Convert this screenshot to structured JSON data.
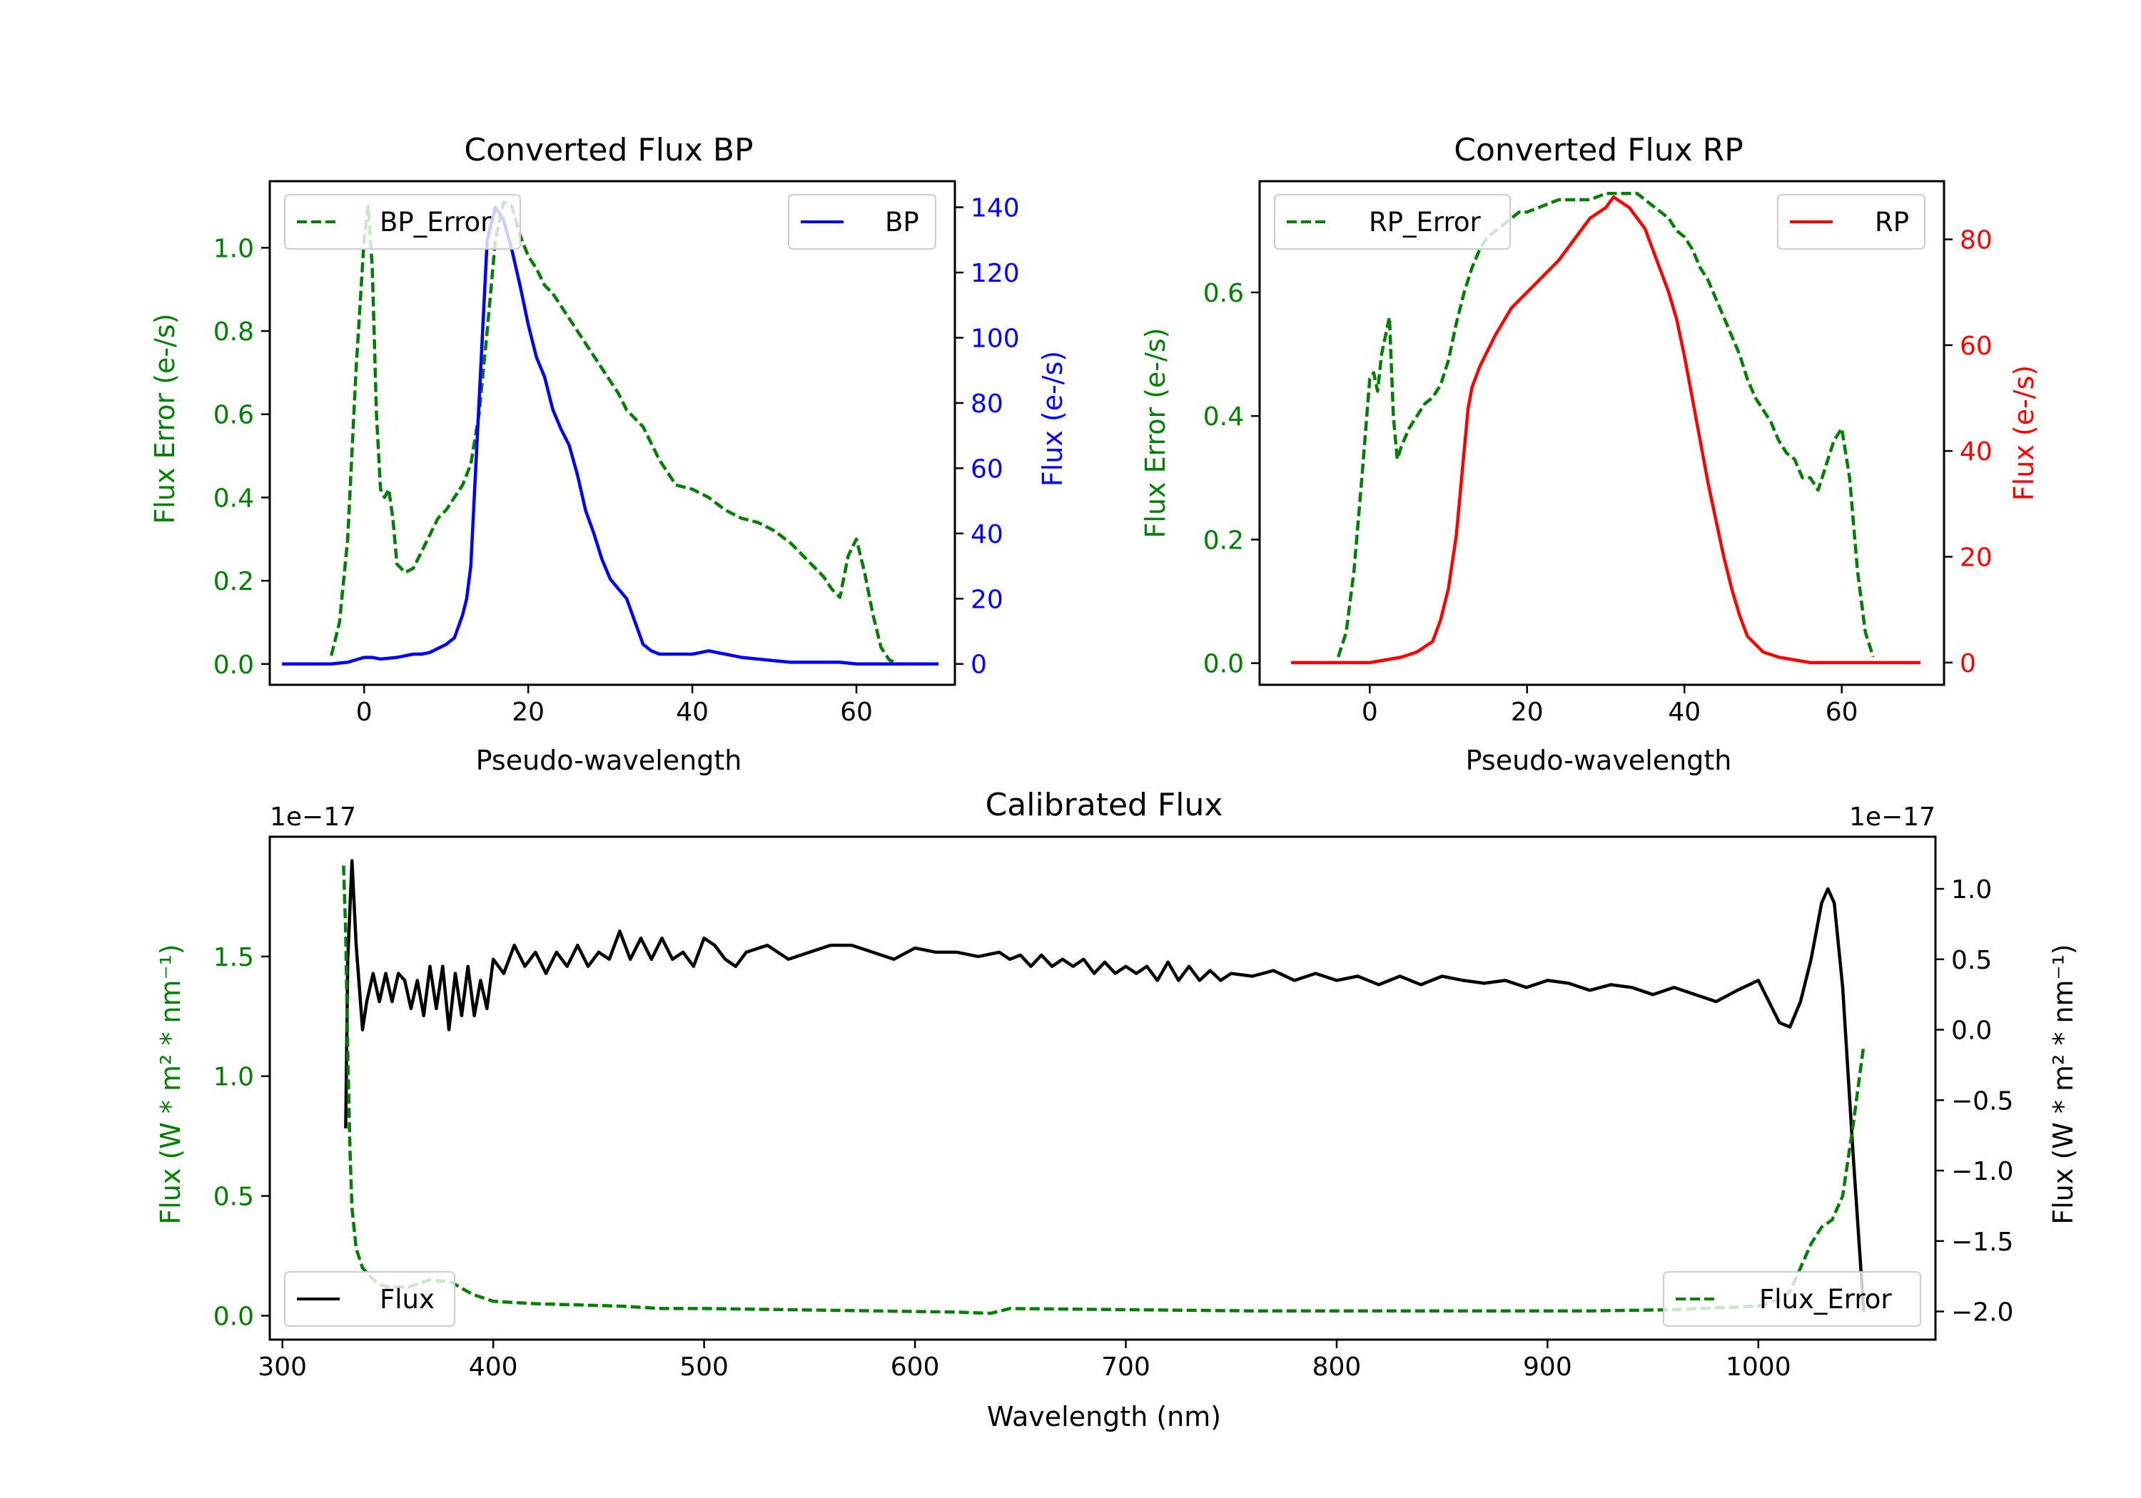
{
  "chart_data": [
    {
      "type": "line",
      "title": "Converted Flux BP",
      "xlabel": "Pseudo-wavelength",
      "ylabel_left": "Flux Error (e-/s)",
      "ylabel_right": "Flux (e-/s)",
      "xlim": [
        -11.5,
        72
      ],
      "ylim_left": [
        -0.05,
        1.16
      ],
      "ylim_right": [
        -6.4,
        148
      ],
      "x_ticks": [
        0,
        20,
        40,
        60
      ],
      "y_left_ticks": [
        "0.0",
        "0.2",
        "0.4",
        "0.6",
        "0.8",
        "1.0"
      ],
      "y_left_tick_values": [
        0,
        0.2,
        0.4,
        0.6,
        0.8,
        1.0
      ],
      "y_right_ticks": [
        "0",
        "20",
        "40",
        "60",
        "80",
        "100",
        "120",
        "140"
      ],
      "y_right_tick_values": [
        0,
        20,
        40,
        60,
        80,
        100,
        120,
        140
      ],
      "colors": {
        "left_axis": "#008000",
        "right_axis": "#0000ff",
        "error": "#008000",
        "flux": "#0000ff"
      },
      "legend": {
        "left": "BP_Error",
        "right": "BP"
      },
      "series": [
        {
          "name": "BP_Error",
          "axis": "left",
          "style": "dashed",
          "x": [
            -4,
            -3,
            -2,
            -1,
            0,
            0.5,
            1,
            1.5,
            2,
            2.5,
            3,
            3.5,
            4,
            5,
            6,
            7,
            8,
            9,
            10,
            11,
            12,
            13,
            14,
            15,
            16,
            17,
            18,
            19,
            20,
            21,
            22,
            23,
            24,
            25,
            26,
            27,
            28,
            29,
            30,
            31,
            32,
            33,
            34,
            35,
            36,
            37,
            38,
            40,
            42,
            44,
            46,
            48,
            50,
            52,
            54,
            56,
            57,
            58,
            59,
            60,
            61,
            62,
            63,
            64,
            65,
            66
          ],
          "y": [
            0.02,
            0.1,
            0.3,
            0.7,
            1.02,
            1.1,
            0.95,
            0.6,
            0.42,
            0.4,
            0.42,
            0.35,
            0.24,
            0.22,
            0.23,
            0.27,
            0.31,
            0.35,
            0.37,
            0.4,
            0.43,
            0.48,
            0.6,
            0.8,
            1.02,
            1.11,
            1.1,
            1.03,
            0.98,
            0.95,
            0.91,
            0.89,
            0.86,
            0.83,
            0.8,
            0.77,
            0.74,
            0.71,
            0.68,
            0.65,
            0.61,
            0.59,
            0.57,
            0.53,
            0.49,
            0.46,
            0.43,
            0.42,
            0.4,
            0.37,
            0.35,
            0.34,
            0.32,
            0.29,
            0.25,
            0.21,
            0.18,
            0.16,
            0.26,
            0.3,
            0.22,
            0.12,
            0.04,
            0.01,
            0.0,
            0.0
          ]
        },
        {
          "name": "BP",
          "axis": "right",
          "style": "solid",
          "x": [
            -10,
            -8,
            -6,
            -4,
            -2,
            0,
            1,
            2,
            4,
            6,
            7,
            8,
            10,
            11,
            12,
            12.5,
            13,
            14,
            15,
            16,
            17,
            18,
            19,
            20,
            21,
            22,
            23,
            24,
            25,
            26,
            27,
            28,
            29,
            30,
            31,
            32,
            33,
            34,
            35,
            36,
            38,
            40,
            42,
            44,
            46,
            48,
            50,
            52,
            54,
            56,
            58,
            60,
            62,
            64,
            66,
            68,
            70
          ],
          "y": [
            0,
            0,
            0,
            0,
            0.5,
            2,
            2,
            1.5,
            2,
            3,
            3,
            3.5,
            6,
            8,
            15,
            20,
            30,
            80,
            130,
            140,
            136,
            127,
            116,
            104,
            94,
            88,
            78,
            72,
            67,
            58,
            47,
            40,
            32,
            26,
            23,
            20,
            13,
            6,
            4,
            3,
            3,
            3,
            4,
            3,
            2,
            1.5,
            1,
            0.5,
            0.5,
            0.5,
            0.5,
            0,
            0,
            0,
            0,
            0,
            0
          ]
        }
      ]
    },
    {
      "type": "line",
      "title": "Converted Flux RP",
      "xlabel": "Pseudo-wavelength",
      "ylabel_left": "Flux Error (e-/s)",
      "ylabel_right": "Flux (e-/s)",
      "xlim": [
        -14,
        73
      ],
      "ylim_left": [
        -0.035,
        0.78
      ],
      "ylim_right": [
        -4.2,
        91
      ],
      "x_ticks": [
        0,
        20,
        40,
        60
      ],
      "y_left_ticks": [
        "0.0",
        "0.2",
        "0.4",
        "0.6"
      ],
      "y_left_tick_values": [
        0,
        0.2,
        0.4,
        0.6
      ],
      "y_right_ticks": [
        "0",
        "20",
        "40",
        "60",
        "80"
      ],
      "y_right_tick_values": [
        0,
        20,
        40,
        60,
        80
      ],
      "colors": {
        "left_axis": "#008000",
        "right_axis": "#ff0000",
        "error": "#008000",
        "flux": "#ff0000"
      },
      "legend": {
        "left": "RP_Error",
        "right": "RP"
      },
      "series": [
        {
          "name": "RP_Error",
          "axis": "left",
          "style": "dashed",
          "x": [
            -4,
            -3,
            -2,
            -1,
            0,
            0.5,
            1,
            1.5,
            2,
            2.5,
            3,
            3.5,
            4,
            5,
            6,
            7,
            8,
            9,
            10,
            11,
            12,
            13,
            14,
            15,
            16,
            17,
            18,
            19,
            20,
            22,
            24,
            26,
            28,
            30,
            31,
            32,
            33,
            34,
            35,
            36,
            37,
            38,
            39,
            40,
            41,
            42,
            43,
            44,
            45,
            46,
            47,
            48,
            49,
            50,
            51,
            52,
            53,
            54,
            55,
            56,
            57,
            58,
            59,
            60,
            61,
            62,
            63,
            64
          ],
          "y": [
            0.01,
            0.05,
            0.15,
            0.3,
            0.46,
            0.47,
            0.44,
            0.5,
            0.53,
            0.56,
            0.4,
            0.33,
            0.35,
            0.38,
            0.4,
            0.42,
            0.43,
            0.45,
            0.49,
            0.55,
            0.6,
            0.64,
            0.67,
            0.69,
            0.7,
            0.71,
            0.72,
            0.73,
            0.73,
            0.74,
            0.75,
            0.75,
            0.75,
            0.76,
            0.76,
            0.76,
            0.76,
            0.76,
            0.75,
            0.74,
            0.73,
            0.72,
            0.7,
            0.69,
            0.67,
            0.64,
            0.62,
            0.59,
            0.56,
            0.53,
            0.5,
            0.46,
            0.43,
            0.41,
            0.39,
            0.36,
            0.34,
            0.33,
            0.3,
            0.3,
            0.28,
            0.32,
            0.36,
            0.38,
            0.3,
            0.15,
            0.05,
            0.01
          ]
        },
        {
          "name": "RP",
          "axis": "right",
          "style": "solid",
          "x": [
            -10,
            -6,
            -2,
            0,
            2,
            4,
            6,
            8,
            9,
            10,
            11,
            12,
            12.5,
            13,
            14,
            16,
            18,
            20,
            22,
            24,
            26,
            28,
            30,
            31,
            32,
            33,
            34,
            35,
            36,
            37,
            38,
            39,
            40,
            41,
            42,
            43,
            44,
            45,
            46,
            47,
            48,
            50,
            52,
            54,
            56,
            58,
            60,
            62,
            64,
            66,
            68,
            70
          ],
          "y": [
            0,
            0,
            0,
            0,
            0.5,
            1,
            2,
            4,
            8,
            14,
            24,
            40,
            48,
            52,
            56,
            62,
            67,
            70,
            73,
            76,
            80,
            84,
            86,
            88,
            87,
            86,
            84,
            82,
            78,
            74,
            70,
            65,
            58,
            50,
            42,
            34,
            27,
            20,
            14,
            9,
            5,
            2,
            1,
            0.5,
            0,
            0,
            0,
            0,
            0,
            0,
            0,
            0
          ]
        }
      ]
    },
    {
      "type": "line",
      "title": "Calibrated Flux",
      "xlabel": "Wavelength (nm)",
      "ylabel_left": "Flux (W * m² * nm⁻¹)",
      "ylabel_right": "Flux (W * m² * nm⁻¹)",
      "offset_left": "1e−17",
      "offset_right": "1e−17",
      "xlim": [
        294,
        1084
      ],
      "ylim_left": [
        -0.1,
        2.0
      ],
      "ylim_right": [
        -2.2,
        1.37
      ],
      "x_ticks": [
        300,
        400,
        500,
        600,
        700,
        800,
        900,
        1000
      ],
      "y_left_ticks": [
        "0.0",
        "0.5",
        "1.0",
        "1.5"
      ],
      "y_left_tick_values": [
        0,
        0.5,
        1.0,
        1.5
      ],
      "y_right_ticks": [
        "−2.0",
        "−1.5",
        "−1.0",
        "−0.5",
        "0.0",
        "0.5",
        "1.0"
      ],
      "y_right_tick_values": [
        -2.0,
        -1.5,
        -1.0,
        -0.5,
        0.0,
        0.5,
        1.0
      ],
      "colors": {
        "left_axis": "#008000",
        "right_axis": "#000000",
        "error": "#008000",
        "flux": "#000000"
      },
      "legend": {
        "left": "Flux",
        "right": "Flux_Error"
      },
      "series": [
        {
          "name": "Flux",
          "axis": "right",
          "style": "solid",
          "x": [
            330,
            331,
            333,
            335,
            338,
            340,
            343,
            346,
            349,
            352,
            355,
            358,
            361,
            364,
            367,
            370,
            373,
            376,
            379,
            382,
            385,
            388,
            391,
            394,
            397,
            400,
            405,
            410,
            415,
            420,
            425,
            430,
            435,
            440,
            445,
            450,
            455,
            460,
            465,
            470,
            475,
            480,
            485,
            490,
            495,
            500,
            505,
            510,
            515,
            520,
            530,
            540,
            550,
            560,
            570,
            580,
            590,
            600,
            610,
            620,
            630,
            640,
            645,
            650,
            655,
            660,
            665,
            670,
            675,
            680,
            685,
            690,
            695,
            700,
            705,
            710,
            715,
            720,
            725,
            730,
            735,
            740,
            745,
            750,
            760,
            770,
            780,
            790,
            800,
            810,
            820,
            830,
            840,
            850,
            860,
            870,
            880,
            890,
            900,
            910,
            920,
            930,
            940,
            950,
            960,
            970,
            980,
            990,
            1000,
            1010,
            1015,
            1020,
            1025,
            1030,
            1033,
            1036,
            1040,
            1045,
            1050
          ],
          "y": [
            -0.7,
            0.5,
            1.2,
            0.6,
            0.0,
            0.2,
            0.4,
            0.2,
            0.4,
            0.2,
            0.4,
            0.35,
            0.15,
            0.35,
            0.1,
            0.45,
            0.15,
            0.45,
            0.0,
            0.4,
            0.1,
            0.45,
            0.1,
            0.35,
            0.15,
            0.5,
            0.4,
            0.6,
            0.45,
            0.55,
            0.4,
            0.55,
            0.45,
            0.6,
            0.45,
            0.55,
            0.5,
            0.7,
            0.5,
            0.65,
            0.5,
            0.65,
            0.5,
            0.55,
            0.45,
            0.65,
            0.6,
            0.5,
            0.45,
            0.55,
            0.6,
            0.5,
            0.55,
            0.6,
            0.6,
            0.55,
            0.5,
            0.58,
            0.55,
            0.55,
            0.52,
            0.55,
            0.5,
            0.53,
            0.45,
            0.53,
            0.45,
            0.5,
            0.45,
            0.5,
            0.4,
            0.48,
            0.4,
            0.45,
            0.4,
            0.45,
            0.35,
            0.48,
            0.35,
            0.45,
            0.35,
            0.42,
            0.35,
            0.4,
            0.38,
            0.42,
            0.35,
            0.4,
            0.35,
            0.38,
            0.32,
            0.38,
            0.32,
            0.38,
            0.35,
            0.33,
            0.35,
            0.3,
            0.35,
            0.33,
            0.28,
            0.32,
            0.3,
            0.25,
            0.3,
            0.25,
            0.2,
            0.28,
            0.35,
            0.05,
            0.02,
            0.2,
            0.5,
            0.9,
            1.0,
            0.9,
            0.3,
            -0.9,
            -2.0
          ]
        },
        {
          "name": "Flux_Error",
          "axis": "left",
          "style": "dashed",
          "x": [
            329,
            330,
            331,
            332,
            333,
            335,
            338,
            342,
            346,
            350,
            360,
            370,
            380,
            390,
            400,
            420,
            440,
            460,
            480,
            500,
            540,
            580,
            620,
            636,
            645,
            700,
            760,
            800,
            840,
            880,
            920,
            960,
            1000,
            1010,
            1015,
            1020,
            1025,
            1030,
            1035,
            1040,
            1045,
            1050
          ],
          "y": [
            1.88,
            1.6,
            1.1,
            0.7,
            0.45,
            0.28,
            0.2,
            0.16,
            0.13,
            0.12,
            0.12,
            0.15,
            0.14,
            0.09,
            0.06,
            0.05,
            0.045,
            0.04,
            0.03,
            0.03,
            0.025,
            0.02,
            0.015,
            0.01,
            0.03,
            0.025,
            0.02,
            0.02,
            0.02,
            0.02,
            0.02,
            0.025,
            0.04,
            0.07,
            0.1,
            0.2,
            0.3,
            0.37,
            0.4,
            0.5,
            0.8,
            1.13
          ]
        }
      ]
    }
  ]
}
